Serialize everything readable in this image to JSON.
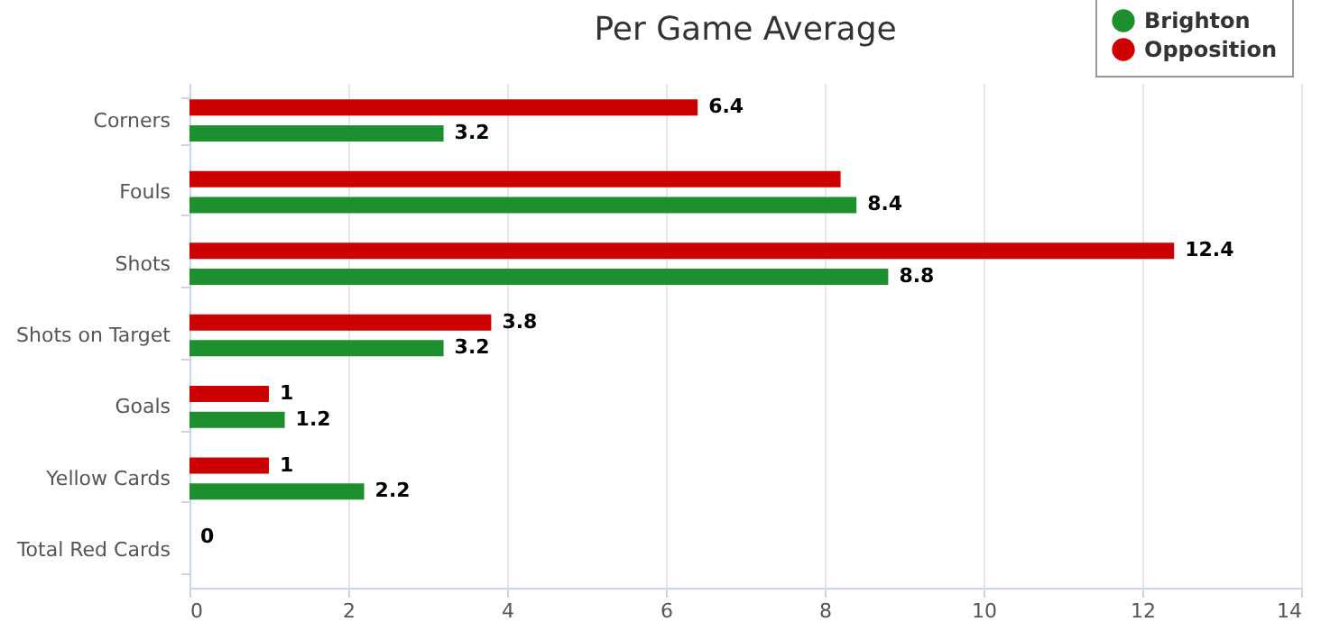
{
  "chart_data": {
    "type": "bar",
    "orientation": "horizontal",
    "title": "Per Game Average",
    "categories": [
      "Corners",
      "Fouls",
      "Shots",
      "Shots on Target",
      "Goals",
      "Yellow Cards",
      "Total Red Cards"
    ],
    "series": [
      {
        "name": "Brighton",
        "color": "#1e8f2e",
        "values": [
          3.2,
          8.4,
          8.8,
          3.2,
          1.2,
          2.2,
          0
        ],
        "value_labels": [
          "3.2",
          "8.4",
          "8.8",
          "3.2",
          "1.2",
          "2.2",
          null
        ]
      },
      {
        "name": "Opposition",
        "color": "#cc0000",
        "values": [
          6.4,
          8.2,
          12.4,
          3.8,
          1,
          1,
          0
        ],
        "value_labels": [
          "6.4",
          null,
          "12.4",
          "3.8",
          "1",
          "1",
          "0"
        ]
      }
    ],
    "xlim": [
      0,
      14
    ],
    "xticks": [
      0,
      2,
      4,
      6,
      8,
      10,
      12,
      14
    ],
    "grid": "x",
    "legend": "top right"
  }
}
